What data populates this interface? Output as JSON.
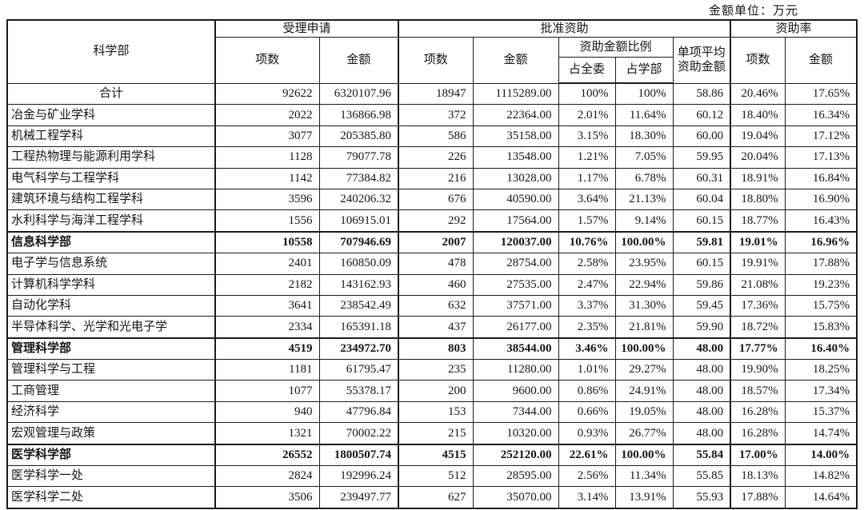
{
  "unit_label": "金额单位：万元",
  "table": {
    "header": {
      "dept": "科学部",
      "accepted": "受理申请",
      "approved": "批准资助",
      "rate": "资助率",
      "items": "项数",
      "amount": "金额",
      "ratio": "资助金额比例",
      "of_committee": "占全委",
      "of_dept": "占学部",
      "avg": "单项平均资助金额"
    },
    "rows": [
      {
        "name": "合计",
        "total": true,
        "section": false,
        "values": [
          "92622",
          "6320107.96",
          "18947",
          "1115289.00",
          "100%",
          "100%",
          "58.86",
          "20.46%",
          "17.65%"
        ]
      },
      {
        "name": "冶金与矿业学科",
        "total": false,
        "section": false,
        "values": [
          "2022",
          "136866.98",
          "372",
          "22364.00",
          "2.01%",
          "11.64%",
          "60.12",
          "18.40%",
          "16.34%"
        ]
      },
      {
        "name": "机械工程学科",
        "total": false,
        "section": false,
        "values": [
          "3077",
          "205385.80",
          "586",
          "35158.00",
          "3.15%",
          "18.30%",
          "60.00",
          "19.04%",
          "17.12%"
        ]
      },
      {
        "name": "工程热物理与能源利用学科",
        "total": false,
        "section": false,
        "values": [
          "1128",
          "79077.78",
          "226",
          "13548.00",
          "1.21%",
          "7.05%",
          "59.95",
          "20.04%",
          "17.13%"
        ]
      },
      {
        "name": "电气科学与工程学科",
        "total": false,
        "section": false,
        "values": [
          "1142",
          "77384.82",
          "216",
          "13028.00",
          "1.17%",
          "6.78%",
          "60.31",
          "18.91%",
          "16.84%"
        ]
      },
      {
        "name": "建筑环境与结构工程学科",
        "total": false,
        "section": false,
        "values": [
          "3596",
          "240206.32",
          "676",
          "40590.00",
          "3.64%",
          "21.13%",
          "60.04",
          "18.80%",
          "16.90%"
        ]
      },
      {
        "name": "水利科学与海洋工程学科",
        "total": false,
        "section": false,
        "values": [
          "1556",
          "106915.01",
          "292",
          "17564.00",
          "1.57%",
          "9.14%",
          "60.15",
          "18.77%",
          "16.43%"
        ]
      },
      {
        "name": "信息科学部",
        "total": false,
        "section": true,
        "values": [
          "10558",
          "707946.69",
          "2007",
          "120037.00",
          "10.76%",
          "100.00%",
          "59.81",
          "19.01%",
          "16.96%"
        ]
      },
      {
        "name": "电子学与信息系统",
        "total": false,
        "section": false,
        "values": [
          "2401",
          "160850.09",
          "478",
          "28754.00",
          "2.58%",
          "23.95%",
          "60.15",
          "19.91%",
          "17.88%"
        ]
      },
      {
        "name": "计算机科学学科",
        "total": false,
        "section": false,
        "values": [
          "2182",
          "143162.93",
          "460",
          "27535.00",
          "2.47%",
          "22.94%",
          "59.86",
          "21.08%",
          "19.23%"
        ]
      },
      {
        "name": "自动化学科",
        "total": false,
        "section": false,
        "values": [
          "3641",
          "238542.49",
          "632",
          "37571.00",
          "3.37%",
          "31.30%",
          "59.45",
          "17.36%",
          "15.75%"
        ]
      },
      {
        "name": "半导体科学、光学和光电子学",
        "total": false,
        "section": false,
        "values": [
          "2334",
          "165391.18",
          "437",
          "26177.00",
          "2.35%",
          "21.81%",
          "59.90",
          "18.72%",
          "15.83%"
        ]
      },
      {
        "name": "管理科学部",
        "total": false,
        "section": true,
        "values": [
          "4519",
          "234972.70",
          "803",
          "38544.00",
          "3.46%",
          "100.00%",
          "48.00",
          "17.77%",
          "16.40%"
        ]
      },
      {
        "name": "管理科学与工程",
        "total": false,
        "section": false,
        "values": [
          "1181",
          "61795.47",
          "235",
          "11280.00",
          "1.01%",
          "29.27%",
          "48.00",
          "19.90%",
          "18.25%"
        ]
      },
      {
        "name": "工商管理",
        "total": false,
        "section": false,
        "values": [
          "1077",
          "55378.17",
          "200",
          "9600.00",
          "0.86%",
          "24.91%",
          "48.00",
          "18.57%",
          "17.34%"
        ]
      },
      {
        "name": "经济科学",
        "total": false,
        "section": false,
        "values": [
          "940",
          "47796.84",
          "153",
          "7344.00",
          "0.66%",
          "19.05%",
          "48.00",
          "16.28%",
          "15.37%"
        ]
      },
      {
        "name": "宏观管理与政策",
        "total": false,
        "section": false,
        "values": [
          "1321",
          "70002.22",
          "215",
          "10320.00",
          "0.93%",
          "26.77%",
          "48.00",
          "16.28%",
          "14.74%"
        ]
      },
      {
        "name": "医学科学部",
        "total": false,
        "section": true,
        "values": [
          "26552",
          "1800507.74",
          "4515",
          "252120.00",
          "22.61%",
          "100.00%",
          "55.84",
          "17.00%",
          "14.00%"
        ]
      },
      {
        "name": "医学科学一处",
        "total": false,
        "section": false,
        "values": [
          "2824",
          "192996.24",
          "512",
          "28595.00",
          "2.56%",
          "11.34%",
          "55.85",
          "18.13%",
          "14.82%"
        ]
      },
      {
        "name": "医学科学二处",
        "total": false,
        "section": false,
        "values": [
          "3506",
          "239497.77",
          "627",
          "35070.00",
          "3.14%",
          "13.91%",
          "55.93",
          "17.88%",
          "14.64%"
        ]
      }
    ]
  }
}
